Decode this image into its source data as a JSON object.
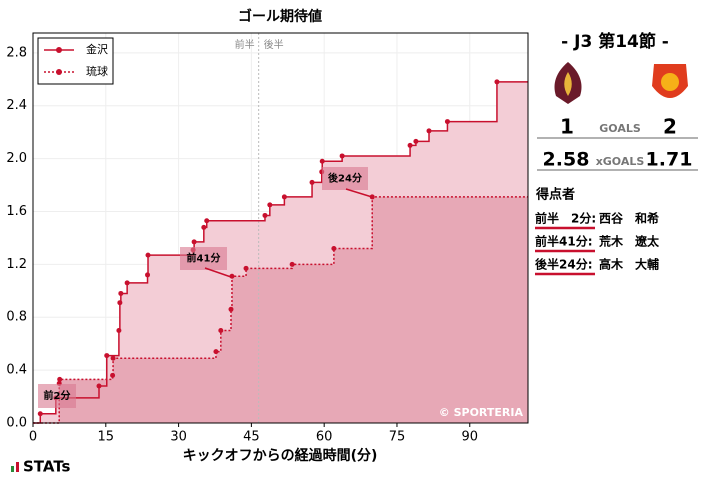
{
  "chart_data": {
    "type": "step",
    "title": "ゴール期待値",
    "x_label": "キックオフからの経過時間(分)",
    "xlim": [
      0,
      102
    ],
    "xticks": [
      0,
      15,
      30,
      45,
      60,
      75,
      90
    ],
    "ylim": [
      0,
      2.95
    ],
    "yticks": [
      {
        "value": 0,
        "label": "0.0"
      },
      0.4,
      0.8,
      1.2,
      1.6,
      {
        "value": 2,
        "label": "2.0"
      },
      2.4,
      2.8
    ],
    "halftime": {
      "x": 46.5,
      "left": "前半",
      "right": "後半"
    },
    "series": [
      {
        "name": "金沢",
        "color": "#c8102e",
        "fill": "#f3cdd6",
        "dash": false,
        "x": [
          1.5,
          4.7,
          13.6,
          15.2,
          17.7,
          17.9,
          18.1,
          19.4,
          23.6,
          23.7,
          33.0,
          33.2,
          35.2,
          35.8,
          47.8,
          48.8,
          51.8,
          57.5,
          59.5,
          59.6,
          63.7,
          77.7,
          78.9,
          81.6,
          85.4,
          95.6
        ],
        "values": [
          0.07,
          0.19,
          0.28,
          0.51,
          0.7,
          0.91,
          0.98,
          1.06,
          1.12,
          1.27,
          1.31,
          1.37,
          1.48,
          1.53,
          1.57,
          1.65,
          1.71,
          1.82,
          1.9,
          1.98,
          2.02,
          2.1,
          2.13,
          2.21,
          2.28,
          2.58
        ]
      },
      {
        "name": "琉球",
        "color": "#c8102e",
        "fill": "#e7a8b6",
        "dash": true,
        "x": [
          5.4,
          5.5,
          16.4,
          16.5,
          37.7,
          38.7,
          40.8,
          41.0,
          43.9,
          53.4,
          62.0,
          69.9
        ],
        "values": [
          0.3,
          0.33,
          0.36,
          0.49,
          0.54,
          0.7,
          0.86,
          1.11,
          1.17,
          1.2,
          1.32,
          1.71
        ]
      }
    ],
    "annotations": [
      "前2分",
      "前41分",
      "後24分"
    ],
    "watermark": "© SPORTERIA"
  },
  "panel": {
    "round": "- J3 第14節 -",
    "home_goals": 1,
    "goals_label": "GOALS",
    "away_goals": 2,
    "home_xg": 2.58,
    "xg_label": "xGOALS",
    "away_xg": 1.71,
    "scorers_title": "得点者",
    "scorers": [
      {
        "time": "前半　2分:",
        "name": "西谷　和希"
      },
      {
        "time": "前半41分:",
        "name": "荒木　遼太"
      },
      {
        "time": "後半24分:",
        "name": "高木　大輔"
      }
    ]
  },
  "logo": "STATs"
}
